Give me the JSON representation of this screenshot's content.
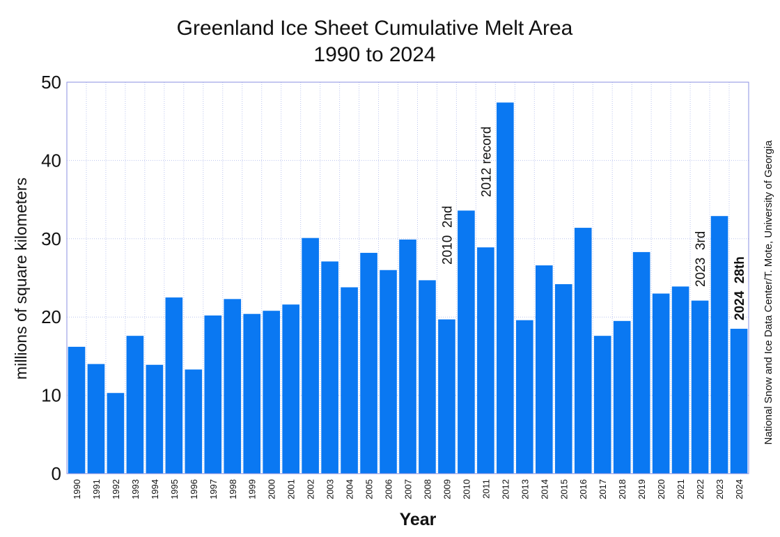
{
  "chart_data": {
    "type": "bar",
    "title": "Greenland Ice Sheet Cumulative Melt Area",
    "subtitle": "1990 to 2024",
    "y_label": "millions of square kilometers",
    "x_label": "Year",
    "credit": "National Snow and Ice Data Center/T. Mote, University of Georgia",
    "categories": [
      "1990",
      "1991",
      "1992",
      "1993",
      "1994",
      "1995",
      "1996",
      "1997",
      "1998",
      "1999",
      "2000",
      "2001",
      "2002",
      "2003",
      "2004",
      "2005",
      "2006",
      "2007",
      "2008",
      "2009",
      "2010",
      "2011",
      "2012",
      "2013",
      "2014",
      "2015",
      "2016",
      "2017",
      "2018",
      "2019",
      "2020",
      "2021",
      "2022",
      "2023",
      "2024"
    ],
    "values": [
      16.2,
      14.0,
      10.3,
      17.6,
      13.9,
      22.5,
      13.3,
      20.2,
      22.3,
      20.4,
      20.8,
      21.6,
      30.1,
      27.1,
      23.8,
      28.2,
      26.0,
      29.9,
      24.7,
      19.7,
      33.6,
      28.9,
      47.4,
      19.6,
      26.6,
      24.2,
      31.4,
      17.6,
      19.5,
      28.3,
      23.0,
      23.9,
      22.1,
      32.9,
      18.5
    ],
    "color": "#0a78f2",
    "ylim": [
      0,
      50
    ],
    "yticks": [
      0,
      10,
      20,
      30,
      40,
      50
    ],
    "grid": true,
    "annotations": [
      "2010  2nd",
      "2012 record",
      "2023  3rd",
      "2024  28th"
    ]
  }
}
